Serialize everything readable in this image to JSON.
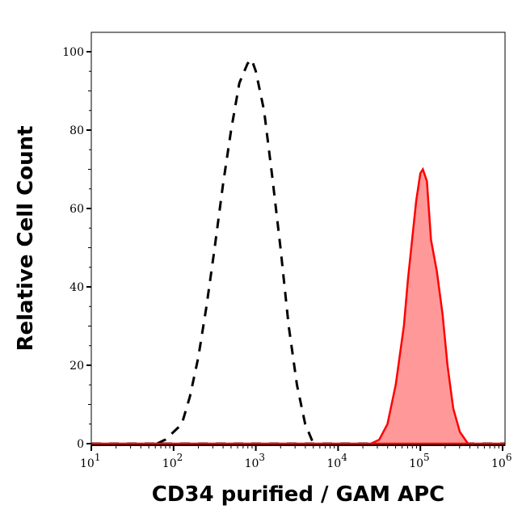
{
  "chart_data": {
    "type": "area",
    "title": "",
    "xlabel": "CD34 purified / GAM APC",
    "ylabel": "Relative Cell Count",
    "xscale": "log",
    "xlim": [
      10,
      1000000
    ],
    "ylim": [
      0,
      105
    ],
    "x_ticks": [
      {
        "base": "10",
        "exp": "1"
      },
      {
        "base": "10",
        "exp": "2"
      },
      {
        "base": "10",
        "exp": "3"
      },
      {
        "base": "10",
        "exp": "4"
      },
      {
        "base": "10",
        "exp": "5"
      },
      {
        "base": "10",
        "exp": "6"
      }
    ],
    "y_ticks": [
      "0",
      "20",
      "40",
      "60",
      "80",
      "100"
    ],
    "grid": false,
    "legend": "none",
    "series": [
      {
        "style": "dashed-line",
        "color": "#000000",
        "x": [
          63,
          79,
          100,
          126,
          158,
          200,
          251,
          316,
          398,
          501,
          631,
          794,
          891,
          1000,
          1259,
          1585,
          1995,
          2512,
          3162,
          3981,
          5012
        ],
        "y": [
          0,
          1,
          3,
          5,
          12,
          22,
          35,
          50,
          66,
          80,
          92,
          97,
          98,
          95,
          85,
          68,
          50,
          30,
          15,
          5,
          0
        ]
      },
      {
        "style": "filled-area",
        "color": "#ff0000",
        "fill": "#ff9999",
        "x": [
          25119,
          31623,
          39811,
          50119,
          63096,
          70795,
          79433,
          89125,
          100000,
          107152,
          120226,
          134896,
          158489,
          186209,
          213796,
          251189,
          301995,
          380189
        ],
        "y": [
          0,
          1,
          5,
          15,
          30,
          42,
          52,
          62,
          69,
          70,
          67,
          52,
          44,
          33,
          20,
          9,
          3,
          0
        ]
      }
    ]
  }
}
